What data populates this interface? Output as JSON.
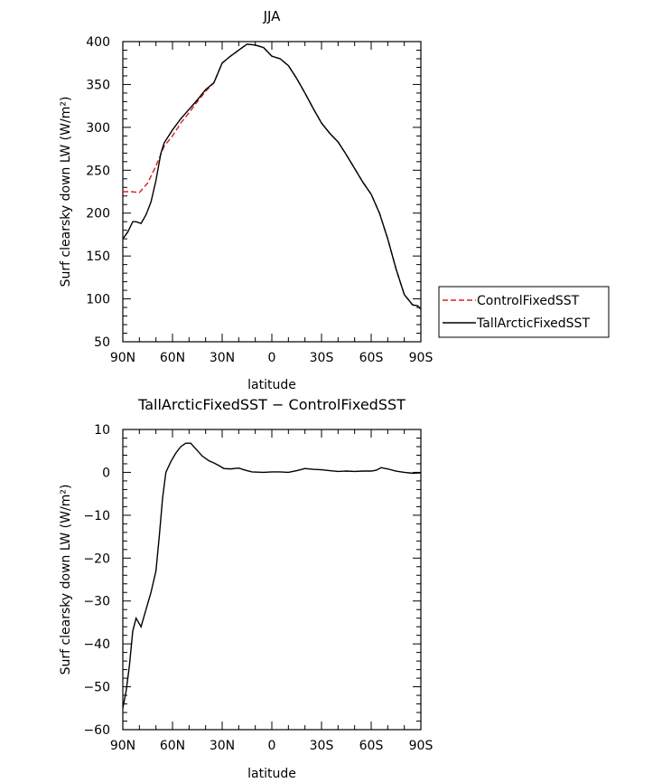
{
  "chart_data": [
    {
      "type": "line",
      "title": "JJA",
      "xlabel": "latitude",
      "ylabel": "Surf clearsky down LW (W/m²)",
      "xlim": [
        -90,
        90
      ],
      "ylim": [
        50,
        400
      ],
      "x_ticks": [
        -90,
        -60,
        -30,
        0,
        30,
        60,
        90
      ],
      "x_tick_labels": [
        "90N",
        "60N",
        "30N",
        "0",
        "30S",
        "60S",
        "90S"
      ],
      "y_ticks": [
        50,
        100,
        150,
        200,
        250,
        300,
        350,
        400
      ],
      "y_tick_labels": [
        "50",
        "100",
        "150",
        "200",
        "250",
        "300",
        "350",
        "400"
      ],
      "legend_position": "right",
      "series": [
        {
          "name": "ControlFixedSST",
          "color": "#d62020",
          "dash": "dashed",
          "points": [
            [
              -90,
              225
            ],
            [
              -85,
              225
            ],
            [
              -80,
              224
            ],
            [
              -75,
              235
            ],
            [
              -70,
              255
            ],
            [
              -65,
              278
            ],
            [
              -60,
              290
            ],
            [
              -55,
              305
            ],
            [
              -50,
              317
            ],
            [
              -45,
              330
            ],
            [
              -40,
              342
            ],
            [
              -35,
              352
            ],
            [
              -30,
              375
            ],
            [
              -25,
              383
            ],
            [
              -20,
              390
            ],
            [
              -15,
              397
            ],
            [
              -10,
              396
            ],
            [
              -5,
              393
            ],
            [
              0,
              383
            ],
            [
              5,
              380
            ],
            [
              10,
              372
            ],
            [
              15,
              357
            ],
            [
              20,
              340
            ],
            [
              25,
              322
            ],
            [
              30,
              305
            ],
            [
              35,
              293
            ],
            [
              40,
              283
            ],
            [
              45,
              268
            ],
            [
              50,
              252
            ],
            [
              55,
              236
            ],
            [
              60,
              222
            ],
            [
              65,
              200
            ],
            [
              70,
              170
            ],
            [
              75,
              135
            ],
            [
              80,
              105
            ],
            [
              85,
              93
            ],
            [
              88,
              92
            ],
            [
              90,
              88
            ],
            [
              93,
              76
            ],
            [
              96,
              71
            ]
          ]
        },
        {
          "name": "TallArcticFixedSST",
          "color": "#000000",
          "dash": "solid",
          "points": [
            [
              -90,
              170
            ],
            [
              -87,
              178
            ],
            [
              -84,
              190
            ],
            [
              -82,
              190
            ],
            [
              -79,
              188
            ],
            [
              -76,
              198
            ],
            [
              -73,
              213
            ],
            [
              -70,
              238
            ],
            [
              -67,
              270
            ],
            [
              -65,
              282
            ],
            [
              -60,
              297
            ],
            [
              -55,
              310
            ],
            [
              -50,
              321
            ],
            [
              -45,
              332
            ],
            [
              -40,
              344
            ],
            [
              -35,
              352
            ],
            [
              -30,
              375
            ],
            [
              -25,
              383
            ],
            [
              -20,
              390
            ],
            [
              -15,
              397
            ],
            [
              -10,
              396
            ],
            [
              -5,
              393
            ],
            [
              0,
              383
            ],
            [
              5,
              380
            ],
            [
              10,
              372
            ],
            [
              15,
              357
            ],
            [
              20,
              340
            ],
            [
              25,
              322
            ],
            [
              30,
              305
            ],
            [
              35,
              293
            ],
            [
              40,
              283
            ],
            [
              45,
              268
            ],
            [
              50,
              252
            ],
            [
              55,
              236
            ],
            [
              60,
              222
            ],
            [
              65,
              200
            ],
            [
              70,
              170
            ],
            [
              75,
              135
            ],
            [
              80,
              105
            ],
            [
              85,
              93
            ],
            [
              88,
              92
            ],
            [
              90,
              88
            ],
            [
              93,
              76
            ],
            [
              96,
              71
            ]
          ]
        }
      ]
    },
    {
      "type": "line",
      "title": "TallArcticFixedSST − ControlFixedSST",
      "xlabel": "latitude",
      "ylabel": "Surf clearsky down LW (W/m²)",
      "xlim": [
        -90,
        90
      ],
      "ylim": [
        -60,
        10
      ],
      "x_ticks": [
        -90,
        -60,
        -30,
        0,
        30,
        60,
        90
      ],
      "x_tick_labels": [
        "90N",
        "60N",
        "30N",
        "0",
        "30S",
        "60S",
        "90S"
      ],
      "y_ticks": [
        -60,
        -50,
        -40,
        -30,
        -20,
        -10,
        0,
        10
      ],
      "y_tick_labels": [
        "−60",
        "−50",
        "−40",
        "−30",
        "−20",
        "−10",
        "0",
        "10"
      ],
      "series": [
        {
          "color": "#000000",
          "dash": "solid",
          "points": [
            [
              -90,
              -55
            ],
            [
              -88,
              -51
            ],
            [
              -86,
              -45
            ],
            [
              -84,
              -37
            ],
            [
              -82,
              -34
            ],
            [
              -79,
              -36
            ],
            [
              -76,
              -32
            ],
            [
              -73,
              -28
            ],
            [
              -70,
              -23
            ],
            [
              -68,
              -15
            ],
            [
              -66,
              -6
            ],
            [
              -64,
              0
            ],
            [
              -61,
              2.5
            ],
            [
              -58,
              4.5
            ],
            [
              -55,
              6
            ],
            [
              -52,
              6.8
            ],
            [
              -49,
              6.8
            ],
            [
              -46,
              5.5
            ],
            [
              -42,
              3.8
            ],
            [
              -38,
              2.7
            ],
            [
              -35,
              2.2
            ],
            [
              -32,
              1.6
            ],
            [
              -29,
              0.9
            ],
            [
              -25,
              0.8
            ],
            [
              -20,
              1
            ],
            [
              -16,
              0.5
            ],
            [
              -12,
              0.1
            ],
            [
              -5,
              0
            ],
            [
              0,
              0.1
            ],
            [
              5,
              0.1
            ],
            [
              10,
              0
            ],
            [
              15,
              0.4
            ],
            [
              20,
              0.9
            ],
            [
              25,
              0.7
            ],
            [
              30,
              0.6
            ],
            [
              35,
              0.4
            ],
            [
              40,
              0.2
            ],
            [
              45,
              0.3
            ],
            [
              50,
              0.2
            ],
            [
              55,
              0.3
            ],
            [
              60,
              0.3
            ],
            [
              63,
              0.5
            ],
            [
              66,
              1.1
            ],
            [
              70,
              0.8
            ],
            [
              75,
              0.3
            ],
            [
              80,
              0
            ],
            [
              85,
              -0.2
            ],
            [
              90,
              -0.1
            ]
          ]
        }
      ]
    }
  ]
}
